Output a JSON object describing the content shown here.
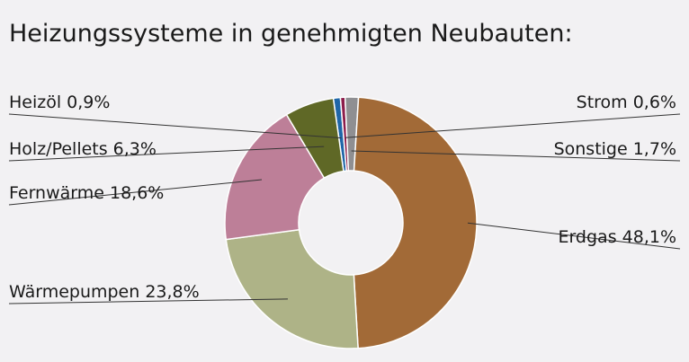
{
  "chart_data": {
    "type": "pie",
    "donut": true,
    "title": "Heizungssysteme in genehmigten Neubauten:",
    "slices": [
      {
        "label": "Heizöl 0,9%",
        "value": 0.9,
        "color": "#1f66a8"
      },
      {
        "label": "Strom 0,6%",
        "value": 0.6,
        "color": "#8c1d4b"
      },
      {
        "label": "Sonstige 1,7%",
        "value": 1.7,
        "color": "#8f8f92"
      },
      {
        "label": "Erdgas 48,1%",
        "value": 48.1,
        "color": "#a26a37"
      },
      {
        "label": "Wärmepumpen 23,8%",
        "value": 23.8,
        "color": "#aeb387"
      },
      {
        "label": "Fernwärme 18,6%",
        "value": 18.6,
        "color": "#bd7f98"
      },
      {
        "label": "Holz/Pellets 6,3%",
        "value": 6.3,
        "color": "#5f6826"
      }
    ],
    "legend": "none"
  }
}
